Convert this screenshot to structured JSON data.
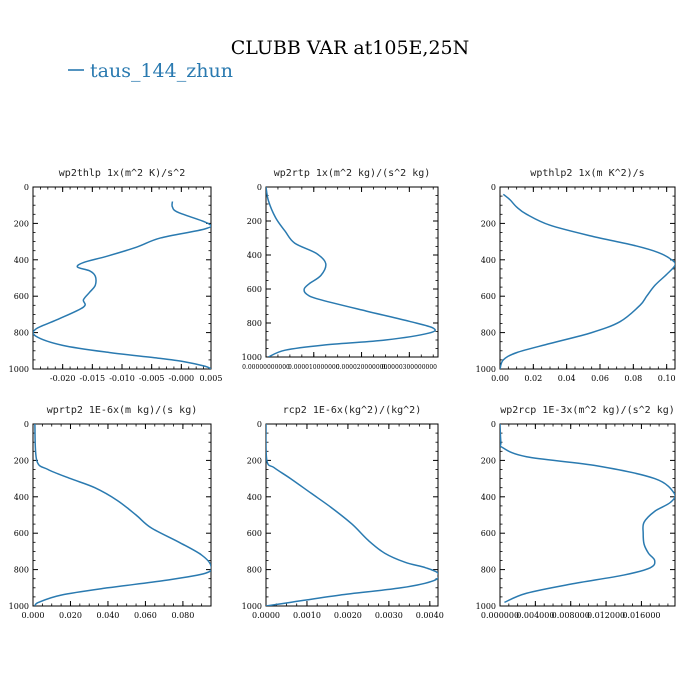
{
  "figure": {
    "title": "CLUBB VAR at105E,25N",
    "legend": {
      "label": "taus_144_zhun",
      "color": "#2a7ab0"
    }
  },
  "chart_data": [
    {
      "type": "line",
      "title": "wp2thlp  1x(m^2 K)/s^2",
      "xlim": [
        -0.025,
        0.005
      ],
      "ylim": [
        1000,
        0
      ],
      "xticks": [
        "-0.020",
        "-0.015",
        "-0.010",
        "-0.005",
        "-0.000",
        "0.005"
      ],
      "xtick_values": [
        -0.02,
        -0.015,
        -0.01,
        -0.005,
        0.0,
        0.005
      ],
      "yticks": [
        "0",
        "200",
        "400",
        "600",
        "800",
        "1000"
      ],
      "series": [
        {
          "x": [
            -0.0015,
            -0.0015,
            -0.0005,
            0.0045,
            0.004,
            -0.0035,
            -0.0075,
            -0.0125,
            -0.0165,
            -0.0175,
            -0.0155,
            -0.0145,
            -0.0145,
            -0.0155,
            -0.0165,
            -0.0165,
            -0.021,
            -0.0245,
            -0.0245,
            -0.02,
            -0.012,
            -0.004,
            0.0005,
            0.004,
            0.005
          ],
          "y": [
            80,
            110,
            140,
            200,
            230,
            280,
            330,
            380,
            415,
            440,
            460,
            490,
            540,
            580,
            620,
            660,
            730,
            780,
            820,
            870,
            910,
            940,
            960,
            985,
            1000
          ]
        }
      ]
    },
    {
      "type": "line",
      "title": "wp2rtp  1x(m^2 kg)/(s^2 kg)",
      "xlim": [
        0,
        3.6e-05
      ],
      "ylim": [
        1000,
        0
      ],
      "xticks": [
        "0.00000000000",
        "0.000010000000",
        "0.000020000000",
        "0.0000300000000"
      ],
      "xtick_values": [
        0,
        1e-05,
        2e-05,
        3e-05
      ],
      "yticks": [
        "0",
        "200",
        "400",
        "600",
        "800",
        "1000"
      ],
      "series": [
        {
          "x": [
            0,
            5e-07,
            2e-06,
            4e-06,
            6e-06,
            1.05e-05,
            1.25e-05,
            1.15e-05,
            9e-06,
            8e-06,
            8.5e-06,
            1.1e-05,
            2.1e-05,
            3e-05,
            3.5e-05,
            3.4e-05,
            2.5e-05,
            1.2e-05,
            4e-06,
            5e-07
          ],
          "y": [
            0,
            80,
            180,
            260,
            330,
            390,
            450,
            520,
            570,
            600,
            630,
            660,
            730,
            790,
            830,
            860,
            900,
            930,
            960,
            1000
          ]
        }
      ]
    },
    {
      "type": "line",
      "title": "wpthlp2  1x(m K^2)/s",
      "xlim": [
        0,
        0.105
      ],
      "ylim": [
        1000,
        0
      ],
      "xticks": [
        "0.00",
        "0.02",
        "0.04",
        "0.06",
        "0.08",
        "0.10"
      ],
      "xtick_values": [
        0,
        0.02,
        0.04,
        0.06,
        0.08,
        0.1
      ],
      "yticks": [
        "0",
        "200",
        "400",
        "600",
        "800",
        "1000"
      ],
      "series": [
        {
          "x": [
            0.002,
            0.006,
            0.01,
            0.016,
            0.03,
            0.055,
            0.08,
            0.095,
            0.103,
            0.105,
            0.1,
            0.093,
            0.088,
            0.084,
            0.072,
            0.055,
            0.03,
            0.01,
            0.002,
            0.0
          ],
          "y": [
            40,
            70,
            110,
            150,
            210,
            270,
            320,
            360,
            400,
            430,
            480,
            540,
            600,
            650,
            740,
            800,
            860,
            910,
            950,
            1000
          ]
        }
      ]
    },
    {
      "type": "line",
      "title": "wprtp2  1E-6x(m kg)/(s kg)",
      "xlim": [
        0,
        0.095
      ],
      "ylim": [
        1000,
        0
      ],
      "xticks": [
        "0.000",
        "0.020",
        "0.040",
        "0.060",
        "0.080"
      ],
      "xtick_values": [
        0,
        0.02,
        0.04,
        0.06,
        0.08
      ],
      "yticks": [
        "0",
        "200",
        "400",
        "600",
        "800",
        "1000"
      ],
      "series": [
        {
          "x": [
            0.001,
            0.002,
            0.008,
            0.02,
            0.033,
            0.045,
            0.055,
            0.063,
            0.078,
            0.09,
            0.095,
            0.092,
            0.07,
            0.04,
            0.015,
            0.003,
            0.001
          ],
          "y": [
            0,
            200,
            250,
            300,
            350,
            420,
            500,
            570,
            650,
            720,
            780,
            820,
            860,
            900,
            940,
            980,
            1000
          ]
        }
      ]
    },
    {
      "type": "line",
      "title": "rcp2  1E-6x(kg^2)/(kg^2)",
      "xlim": [
        0,
        0.0042
      ],
      "ylim": [
        1000,
        0
      ],
      "xticks": [
        "0.0000",
        "0.0010",
        "0.0020",
        "0.0030",
        "0.0040"
      ],
      "xtick_values": [
        0,
        0.001,
        0.002,
        0.003,
        0.004
      ],
      "yticks": [
        "0",
        "200",
        "400",
        "600",
        "800",
        "1000"
      ],
      "series": [
        {
          "x": [
            0,
            2e-05,
            0.0002,
            0.0006,
            0.0011,
            0.0016,
            0.0021,
            0.0025,
            0.0029,
            0.0034,
            0.0039,
            0.0042,
            0.0041,
            0.0033,
            0.0018,
            0.0006,
            0
          ],
          "y": [
            0,
            200,
            240,
            300,
            380,
            460,
            550,
            640,
            710,
            760,
            790,
            820,
            860,
            900,
            940,
            980,
            1000
          ]
        }
      ]
    },
    {
      "type": "line",
      "title": "wp2rcp  1E-3x(m^2 kg)/(s^2 kg)",
      "xlim": [
        0,
        0.0198
      ],
      "ylim": [
        1000,
        0
      ],
      "xticks": [
        "0.000000",
        "0.004000",
        "0.008000",
        "0.012000",
        "0.016000"
      ],
      "xtick_values": [
        0,
        0.004,
        0.008,
        0.012,
        0.016
      ],
      "yticks": [
        "0",
        "200",
        "400",
        "600",
        "800",
        "1000"
      ],
      "series": [
        {
          "x": [
            0,
            0.0001,
            0.0003,
            0.003,
            0.011,
            0.0175,
            0.0197,
            0.0193,
            0.0175,
            0.0163,
            0.0162,
            0.0163,
            0.0168,
            0.0175,
            0.017,
            0.014,
            0.008,
            0.003,
            0.0005
          ],
          "y": [
            0,
            100,
            130,
            180,
            230,
            300,
            380,
            430,
            480,
            540,
            600,
            660,
            710,
            750,
            790,
            830,
            880,
            930,
            980
          ]
        }
      ]
    }
  ]
}
